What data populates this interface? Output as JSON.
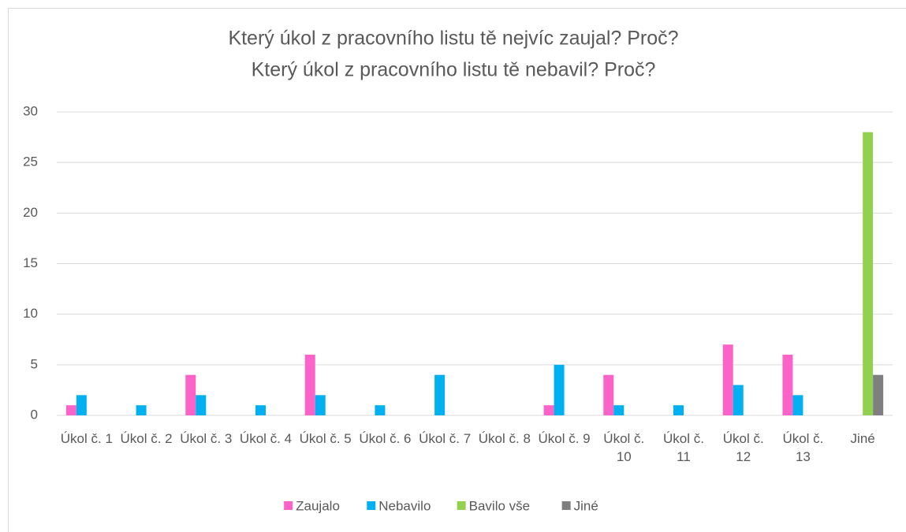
{
  "chart_data": {
    "type": "bar",
    "title": [
      "Který úkol z pracovního listu tě nejvíc zaujal? Proč?",
      "Který úkol z pracovního listu tě nebavil? Proč?"
    ],
    "categories": [
      "Úkol č. 1",
      "Úkol č. 2",
      "Úkol č. 3",
      "Úkol č. 4",
      "Úkol č. 5",
      "Úkol č. 6",
      "Úkol č. 7",
      "Úkol č. 8",
      "Úkol č. 9",
      "Úkol č. 10",
      "Úkol č. 11",
      "Úkol č. 12",
      "Úkol č. 13",
      "Jiné"
    ],
    "series": [
      {
        "name": "Zaujalo",
        "color": "#fb63c9",
        "values": [
          1,
          0,
          4,
          0,
          6,
          0,
          0,
          0,
          1,
          4,
          0,
          7,
          6,
          0
        ]
      },
      {
        "name": "Nebavilo",
        "color": "#00b0f0",
        "values": [
          2,
          1,
          2,
          1,
          2,
          1,
          4,
          0,
          5,
          1,
          1,
          3,
          2,
          0
        ]
      },
      {
        "name": "Bavilo vše",
        "color": "#92d050",
        "values": [
          0,
          0,
          0,
          0,
          0,
          0,
          0,
          0,
          0,
          0,
          0,
          0,
          0,
          28
        ]
      },
      {
        "name": "Jiné",
        "color": "#7f7f7f",
        "values": [
          0,
          0,
          0,
          0,
          0,
          0,
          0,
          0,
          0,
          0,
          0,
          0,
          0,
          4
        ]
      }
    ],
    "ylim": [
      0,
      30
    ],
    "yticks": [
      0,
      5,
      10,
      15,
      20,
      25,
      30
    ],
    "grid": true,
    "legend": "bottom"
  }
}
